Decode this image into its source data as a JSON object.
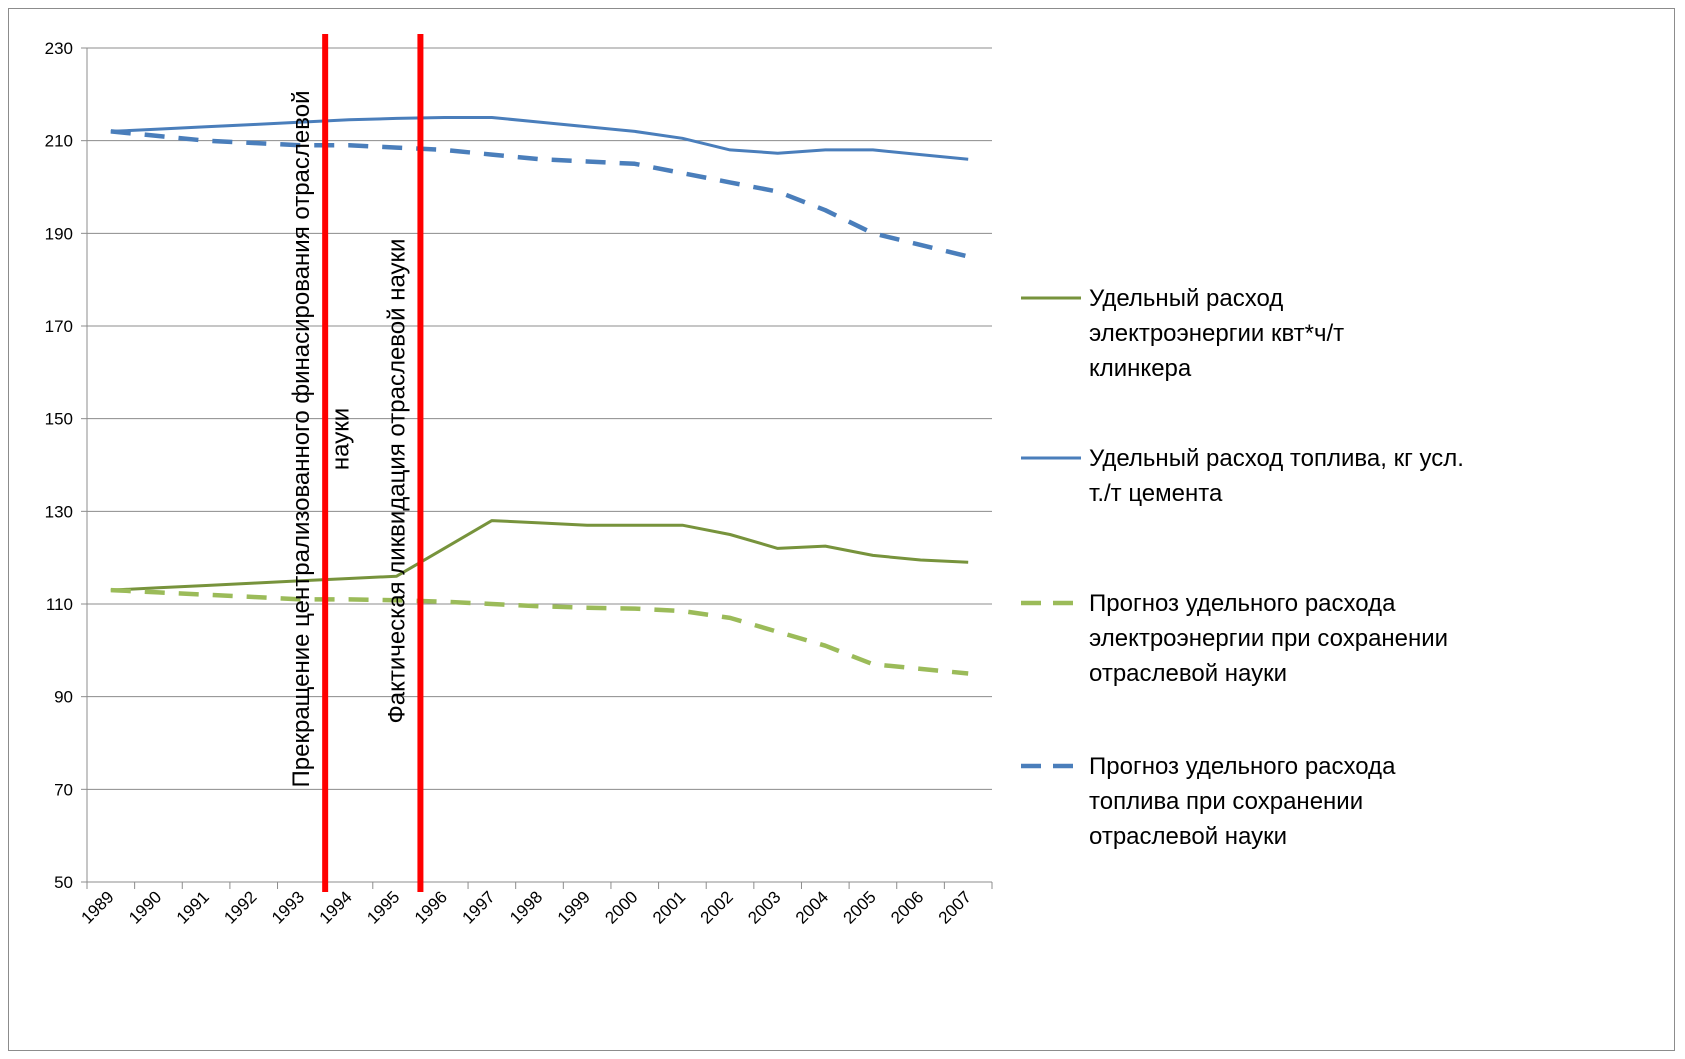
{
  "chart_data": {
    "type": "line",
    "categories": [
      "1989",
      "1990",
      "1991",
      "1992",
      "1993",
      "1994",
      "1995",
      "1996",
      "1997",
      "1998",
      "1999",
      "2000",
      "2001",
      "2002",
      "2003",
      "2004",
      "2005",
      "2006",
      "2007"
    ],
    "ylim": [
      50,
      230
    ],
    "yticks": [
      50,
      70,
      90,
      110,
      130,
      150,
      170,
      190,
      210,
      230
    ],
    "grid": true,
    "legend_position": "right",
    "series": [
      {
        "name": "Удельный расход электроэнергии квт*ч/т клинкера",
        "legend_lines": [
          "Удельный расход",
          "электроэнергии квт*ч/т",
          "клинкера"
        ],
        "color": "#77933c",
        "dash": "solid",
        "values": [
          113,
          113.5,
          114,
          114.5,
          115,
          115.5,
          116,
          122,
          128,
          127.5,
          127,
          127,
          127,
          125,
          122,
          122.5,
          120.5,
          119.5,
          119
        ]
      },
      {
        "name": "Удельный расход топлива, кг усл. т./т цемента",
        "legend_lines": [
          "Удельный расход топлива, кг усл.",
          "т./т цемента"
        ],
        "color": "#4a7ebb",
        "dash": "solid",
        "values": [
          212,
          212.5,
          213,
          213.5,
          214,
          214.5,
          214.8,
          215,
          215,
          214,
          213,
          212,
          210.5,
          208,
          207.3,
          208,
          208,
          207,
          206
        ]
      },
      {
        "name": "Прогноз удельного расхода электроэнергии при сохранении отраслевой науки",
        "legend_lines": [
          "Прогноз удельного расхода",
          "электроэнергии при сохранении",
          "отраслевой науки"
        ],
        "color": "#9bbb59",
        "dash": "dashed",
        "values": [
          113,
          112.5,
          112,
          111.5,
          111,
          111,
          110.8,
          110.5,
          110,
          109.5,
          109.2,
          109,
          108.5,
          107,
          104,
          101,
          97,
          96,
          95
        ]
      },
      {
        "name": "Прогноз удельного расхода топлива при сохранении отраслевой науки",
        "legend_lines": [
          "Прогноз удельного расхода",
          "топлива при сохранении",
          "отраслевой науки"
        ],
        "color": "#4a7ebb",
        "dash": "dashed",
        "values": [
          212,
          211,
          210,
          209.5,
          209,
          209,
          208.5,
          208,
          207,
          206,
          205.5,
          205,
          203,
          201,
          199,
          195,
          190,
          187.5,
          185
        ]
      }
    ],
    "annotations": [
      {
        "at_year_between": [
          "1993",
          "1994"
        ],
        "color": "#ff0000",
        "lines": [
          "Прекращение централизованного финасирования отраслевой",
          "науки"
        ]
      },
      {
        "at_year_between": [
          "1995",
          "1996"
        ],
        "color": "#ff0000",
        "lines": [
          "Фактическая ликвидация отраслевой  науки"
        ]
      }
    ]
  }
}
